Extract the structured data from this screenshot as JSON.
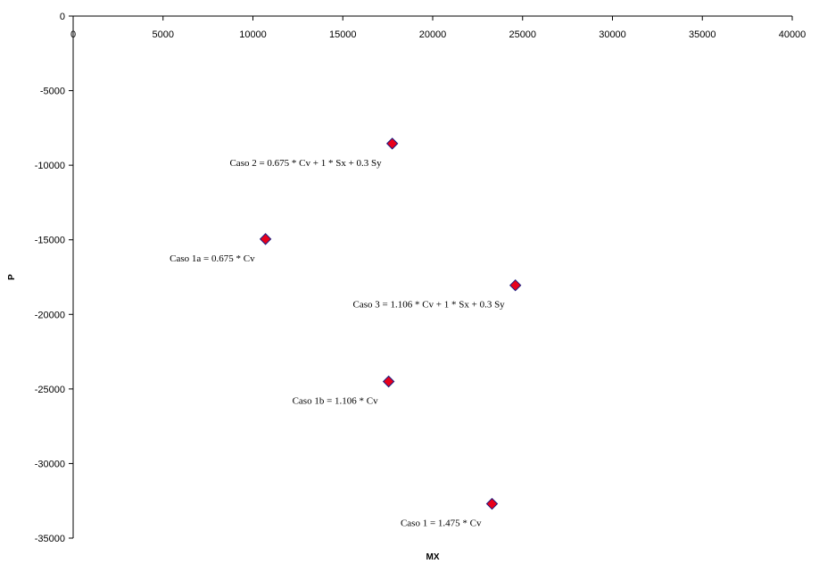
{
  "chart_data": {
    "type": "scatter",
    "title": "",
    "xlabel": "MX",
    "ylabel": "P",
    "xlim": [
      0,
      40000
    ],
    "ylim": [
      -35000,
      0
    ],
    "x_ticks": [
      0,
      5000,
      10000,
      15000,
      20000,
      25000,
      30000,
      35000,
      40000
    ],
    "y_ticks": [
      0,
      -5000,
      -10000,
      -15000,
      -20000,
      -25000,
      -30000,
      -35000
    ],
    "x_tick_labels": [
      "0",
      "5000",
      "10000",
      "15000",
      "20000",
      "25000",
      "30000",
      "35000",
      "40000"
    ],
    "y_tick_labels": [
      "0",
      "-5000",
      "-10000",
      "-15000",
      "-20000",
      "-25000",
      "-30000",
      "-35000"
    ],
    "grid": false,
    "legend": "none",
    "marker": "diamond",
    "colors": {
      "marker_fill": "#e8001c",
      "marker_edge": "#1a1a80",
      "axis": "#000000"
    },
    "points": [
      {
        "x": 17750,
        "y": -8550,
        "label": "Caso 2 = 0.675 * Cv + 1 * Sx + 0.3 Sy"
      },
      {
        "x": 10700,
        "y": -14950,
        "label": "Caso 1a = 0.675 * Cv"
      },
      {
        "x": 24600,
        "y": -18050,
        "label": "Caso 3 = 1.106  * Cv + 1 * Sx + 0.3 Sy"
      },
      {
        "x": 17550,
        "y": -24500,
        "label": "Caso 1b = 1.106 * Cv"
      },
      {
        "x": 23300,
        "y": -32700,
        "label": "Caso 1 = 1.475 * Cv"
      }
    ]
  }
}
